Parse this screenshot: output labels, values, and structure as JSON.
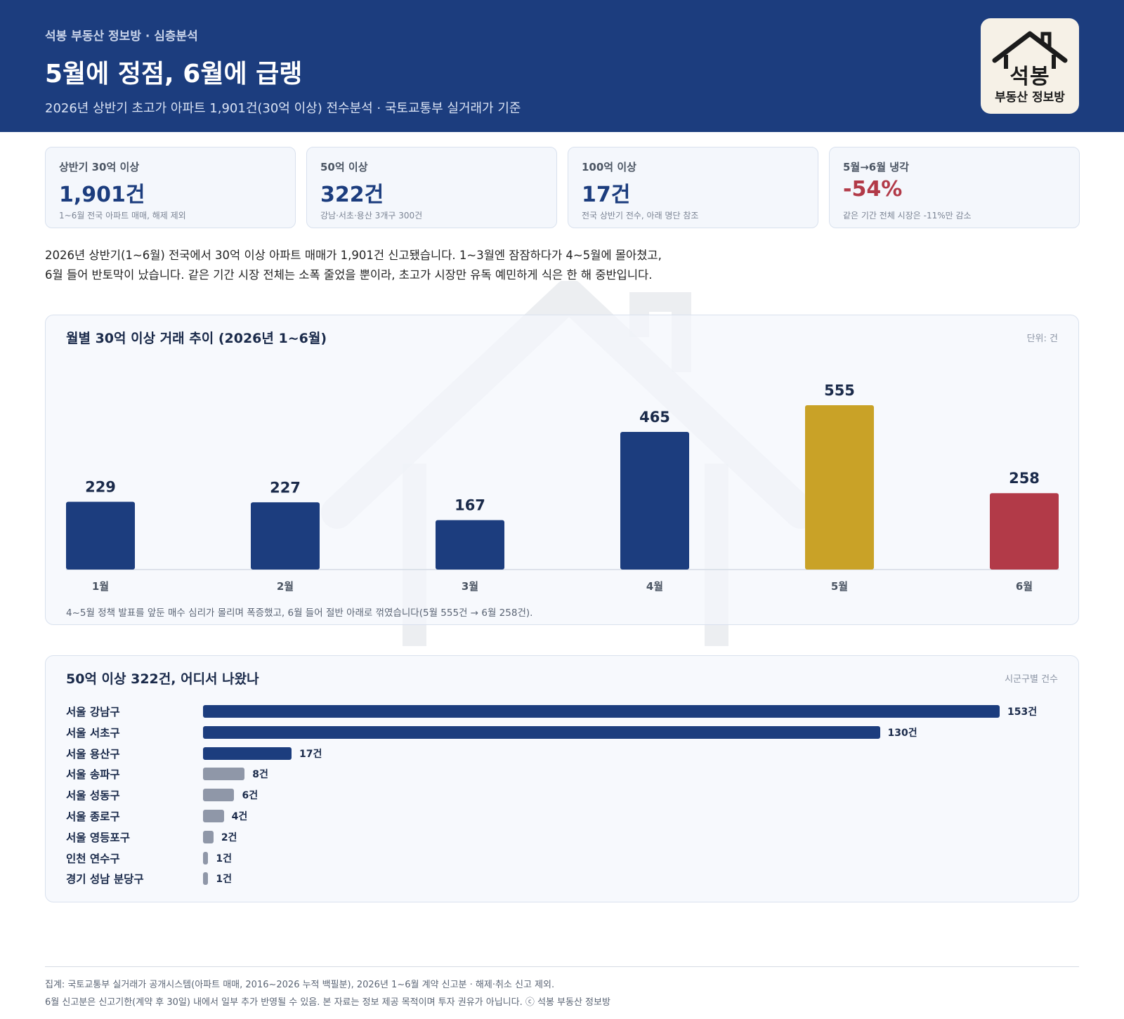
{
  "header": {
    "eyebrow": "석봉 부동산 정보방 · 심층분석",
    "title": "5월에 정점, 6월에 급랭",
    "subtitle": "2026년 상반기 초고가 아파트 1,901건(30억 이상) 전수분석 · 국토교통부 실거래가 기준"
  },
  "logo": {
    "name": "석봉",
    "sub": "부동산 정보방"
  },
  "stats": [
    {
      "label": "상반기 30억 이상",
      "value": "1,901건",
      "note": "1~6월 전국 아파트 매매, 해제 제외"
    },
    {
      "label": "50억 이상",
      "value": "322건",
      "note": "강남·서초·용산 3개구 300건"
    },
    {
      "label": "100억 이상",
      "value": "17건",
      "note": "전국 상반기 전수, 아래 명단 참조"
    },
    {
      "label": "5월→6월 냉각",
      "value": "-54%",
      "note": "같은 기간 전체 시장은 -11%만 감소"
    }
  ],
  "body": {
    "line1": "2026년 상반기(1~6월) 전국에서 30억 이상 아파트 매매가 1,901건 신고됐습니다. 1~3월엔 잠잠하다가 4~5월에 몰아쳤고,",
    "line2": "6월 들어 반토막이 났습니다. 같은 기간 시장 전체는 소폭 줄었을 뿐이라, 초고가 시장만 유독 예민하게 식은 한 해 중반입니다."
  },
  "colors": {
    "navy": "#1c3d7e",
    "gold": "#c9a227",
    "red": "#b23a48",
    "gray": "#8f97a8",
    "header_bg": "#1c3d7e"
  },
  "chart_data": [
    {
      "type": "bar",
      "title": "월별 30억 이상 거래 추이 (2026년 1~6월)",
      "unit": "단위: 건",
      "categories": [
        "1월",
        "2월",
        "3월",
        "4월",
        "5월",
        "6월"
      ],
      "values": [
        229,
        227,
        167,
        465,
        555,
        258
      ],
      "bar_colors": [
        "#1c3d7e",
        "#1c3d7e",
        "#1c3d7e",
        "#1c3d7e",
        "#c9a227",
        "#b23a48"
      ],
      "ylim": [
        0,
        555
      ],
      "grid": false,
      "note": "4~5월 정책 발표를 앞둔 매수 심리가 몰리며 폭증했고, 6월 들어 절반 아래로 꺾였습니다(5월 555건 → 6월 258건)."
    },
    {
      "type": "bar",
      "orientation": "horizontal",
      "title": "50억 이상 322건, 어디서 나왔나",
      "unit": "시군구별 건수",
      "categories": [
        "서울 강남구",
        "서울 서초구",
        "서울 용산구",
        "서울 송파구",
        "서울 성동구",
        "서울 종로구",
        "서울 영등포구",
        "인천 연수구",
        "경기 성남 분당구"
      ],
      "values": [
        153,
        130,
        17,
        8,
        6,
        4,
        2,
        1,
        1
      ],
      "value_labels": [
        "153건",
        "130건",
        "17건",
        "8건",
        "6건",
        "4건",
        "2건",
        "1건",
        "1건"
      ],
      "bar_colors": [
        "#1c3d7e",
        "#1c3d7e",
        "#1c3d7e",
        "#8f97a8",
        "#8f97a8",
        "#8f97a8",
        "#8f97a8",
        "#8f97a8",
        "#8f97a8"
      ],
      "xlim": [
        0,
        153
      ]
    }
  ],
  "footer": {
    "line1": "집계: 국토교통부 실거래가 공개시스템(아파트 매매, 2016~2026 누적 백필분), 2026년 1~6월 계약 신고분 · 해제·취소 신고 제외.",
    "line2": "6월 신고분은 신고기한(계약 후 30일) 내에서 일부 추가 반영될 수 있음. 본 자료는 정보 제공 목적이며 투자 권유가 아닙니다. ⓒ 석봉 부동산 정보방"
  }
}
